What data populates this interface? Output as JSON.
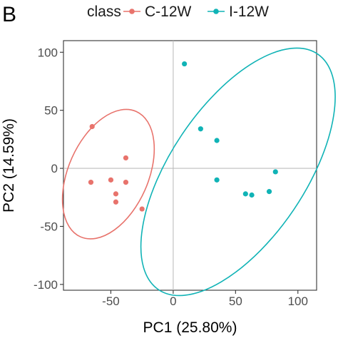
{
  "panel_label": "B",
  "legend": {
    "title": "class",
    "entries": [
      {
        "label": "C-12W",
        "color": "#E8736C"
      },
      {
        "label": "I-12W",
        "color": "#10B3B6"
      }
    ]
  },
  "chart_data": {
    "type": "scatter",
    "xlabel": "PC1 (25.80%)",
    "ylabel": "PC2 (14.59%)",
    "xlim": [
      -88,
      115
    ],
    "ylim": [
      -105,
      110
    ],
    "xticks": [
      -50,
      0,
      50,
      100
    ],
    "yticks": [
      -100,
      -50,
      0,
      50,
      100
    ],
    "xtick_labels": [
      "-50",
      "0",
      "50",
      "100"
    ],
    "ytick_labels": [
      "-100",
      "-50",
      "0",
      "50",
      "100"
    ],
    "zero_lines": true,
    "grid": false,
    "series": [
      {
        "name": "C-12W",
        "color": "#E8736C",
        "points": [
          [
            -65,
            36
          ],
          [
            -38,
            9
          ],
          [
            -66,
            -12
          ],
          [
            -50,
            -10
          ],
          [
            -38,
            -12
          ],
          [
            -46,
            -22
          ],
          [
            -46,
            -29
          ],
          [
            -25,
            -35
          ]
        ],
        "ellipse": {
          "cx": -52,
          "cy": -5,
          "rx": 55,
          "ry": 32,
          "angle": -66
        }
      },
      {
        "name": "I-12W",
        "color": "#10B3B6",
        "points": [
          [
            9,
            90
          ],
          [
            22,
            34
          ],
          [
            35,
            24
          ],
          [
            35,
            -10
          ],
          [
            82,
            -3
          ],
          [
            58,
            -22
          ],
          [
            63,
            -23
          ],
          [
            77,
            -20
          ]
        ],
        "ellipse": {
          "cx": 52,
          "cy": -3,
          "rx": 114,
          "ry": 54,
          "angle": -56
        }
      }
    ]
  }
}
